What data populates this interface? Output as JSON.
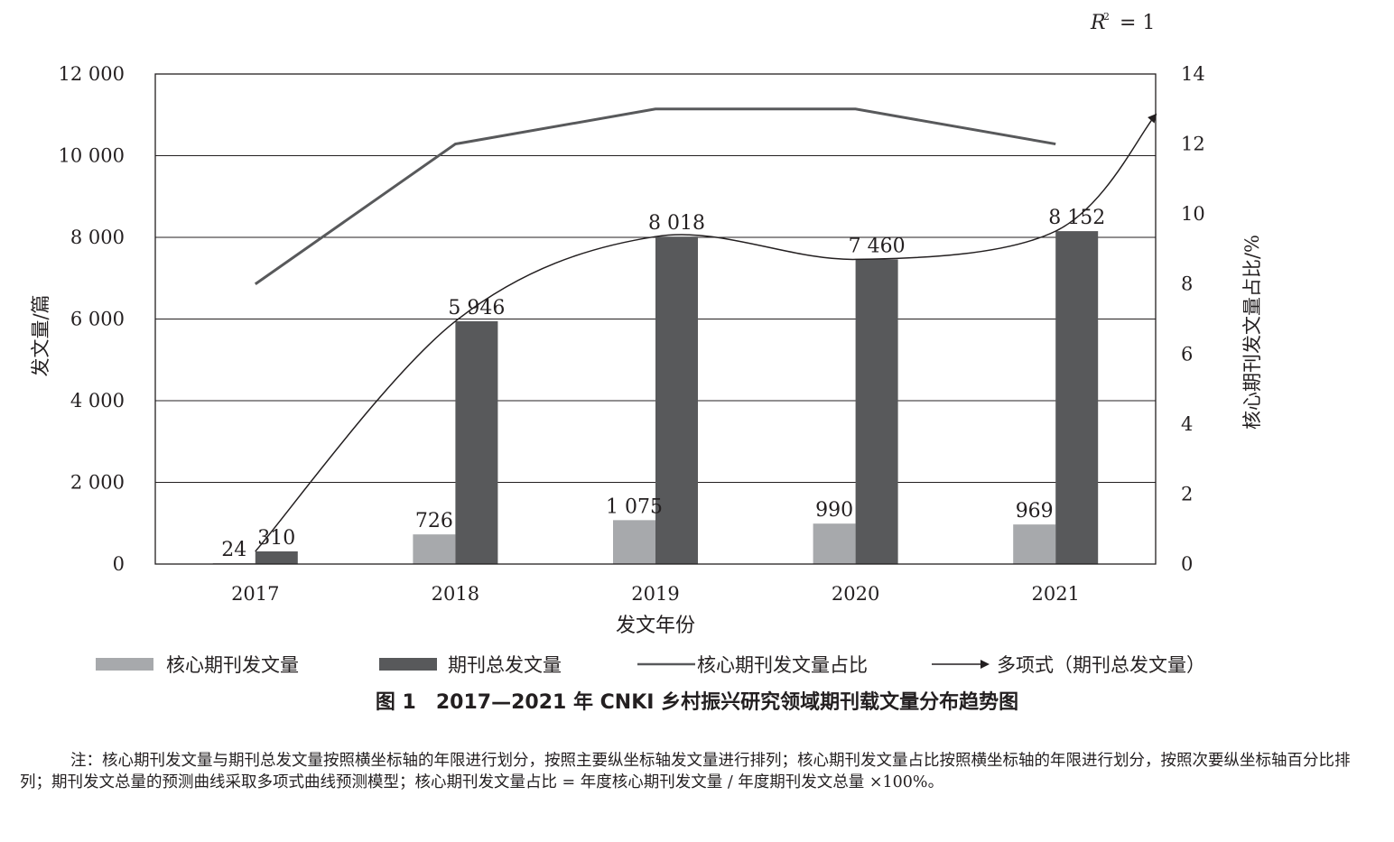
{
  "chart_data": {
    "type": "bar",
    "categories": [
      "2017",
      "2018",
      "2019",
      "2020",
      "2021"
    ],
    "xlabel": "发文年份",
    "ylabel": "发文量/篇",
    "y2label": "核心期刊发文量占比/%",
    "ylim": [
      0,
      12000
    ],
    "y2lim": [
      0,
      14
    ],
    "yticks": [
      "0",
      "2 000",
      "4 000",
      "6 000",
      "8 000",
      "10 000",
      "12 000"
    ],
    "y2ticks": [
      "0",
      "2",
      "4",
      "6",
      "8",
      "10",
      "12",
      "14"
    ],
    "grid": true,
    "legend_position": "bottom",
    "r2_label": "= 1",
    "series": [
      {
        "name": "核心期刊发文量",
        "kind": "bar",
        "axis": "left",
        "color": "#a7a9ac",
        "values": [
          24,
          726,
          1075,
          990,
          969
        ],
        "labels": [
          "24",
          "726",
          "1 075",
          "990",
          "969"
        ]
      },
      {
        "name": "期刊总发文量",
        "kind": "bar",
        "axis": "left",
        "color": "#58595b",
        "values": [
          310,
          5946,
          8018,
          7460,
          8152
        ],
        "labels": [
          "310",
          "5 946",
          "8 018",
          "7 460",
          "8 152"
        ]
      },
      {
        "name": "核心期刊发文量占比",
        "kind": "line",
        "axis": "right",
        "color": "#58595b",
        "values": [
          8,
          12,
          13,
          13,
          12
        ]
      },
      {
        "name": "多项式（期刊总发文量）",
        "kind": "trendline",
        "axis": "left",
        "color": "#231f20",
        "points": [
          [
            2017,
            310
          ],
          [
            2018,
            5946
          ],
          [
            2019,
            8018
          ],
          [
            2020,
            7460
          ],
          [
            2021,
            8152
          ],
          [
            2021.5,
            11000
          ]
        ]
      }
    ]
  },
  "caption": "图 1　2017—2021 年 CNKI 乡村振兴研究领域期刊载文量分布趋势图",
  "note": "注：核心期刊发文量与期刊总发文量按照横坐标轴的年限进行划分，按照主要纵坐标轴发文量进行排列；核心期刊发文量占比按照横坐标轴的年限进行划分，按照次要纵坐标轴百分比排列；期刊发文总量的预测曲线采取多项式曲线预测模型；核心期刊发文量占比 = 年度核心期刊发文量 / 年度期刊发文总量 ×100%。"
}
